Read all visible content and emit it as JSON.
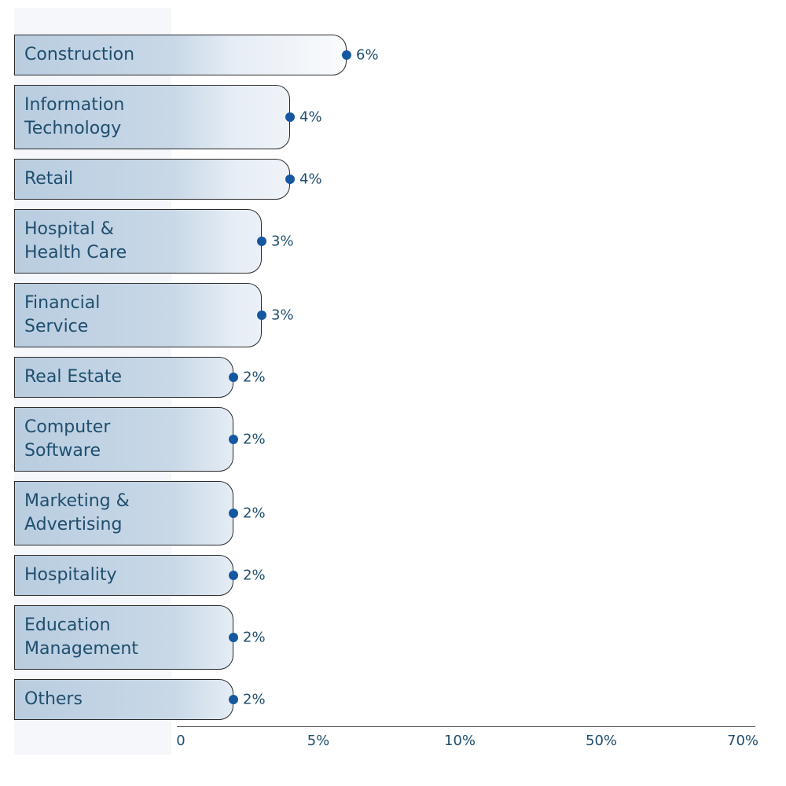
{
  "chart_data": {
    "type": "bar",
    "orientation": "horizontal",
    "categories": [
      "Construction",
      "Information Technology",
      "Retail",
      "Hospital & Health Care",
      "Financial Service",
      "Real Estate",
      "Computer Software",
      "Marketing & Advertising",
      "Hospitality",
      "Education Management",
      "Others"
    ],
    "values": [
      6,
      4,
      4,
      3,
      3,
      2,
      2,
      2,
      2,
      2,
      2
    ],
    "value_labels": [
      "6%",
      "4%",
      "4%",
      "3%",
      "3%",
      "2%",
      "2%",
      "2%",
      "2%",
      "2%",
      "2%"
    ],
    "color": "#1558a0",
    "xlim": [
      0,
      70
    ],
    "xticks": [
      0,
      {
        "value": 5,
        "label": "5%"
      },
      {
        "value": 10,
        "label": "10%"
      },
      {
        "value": 50,
        "label": "50%"
      },
      {
        "value": 70,
        "label": "70%"
      }
    ]
  }
}
